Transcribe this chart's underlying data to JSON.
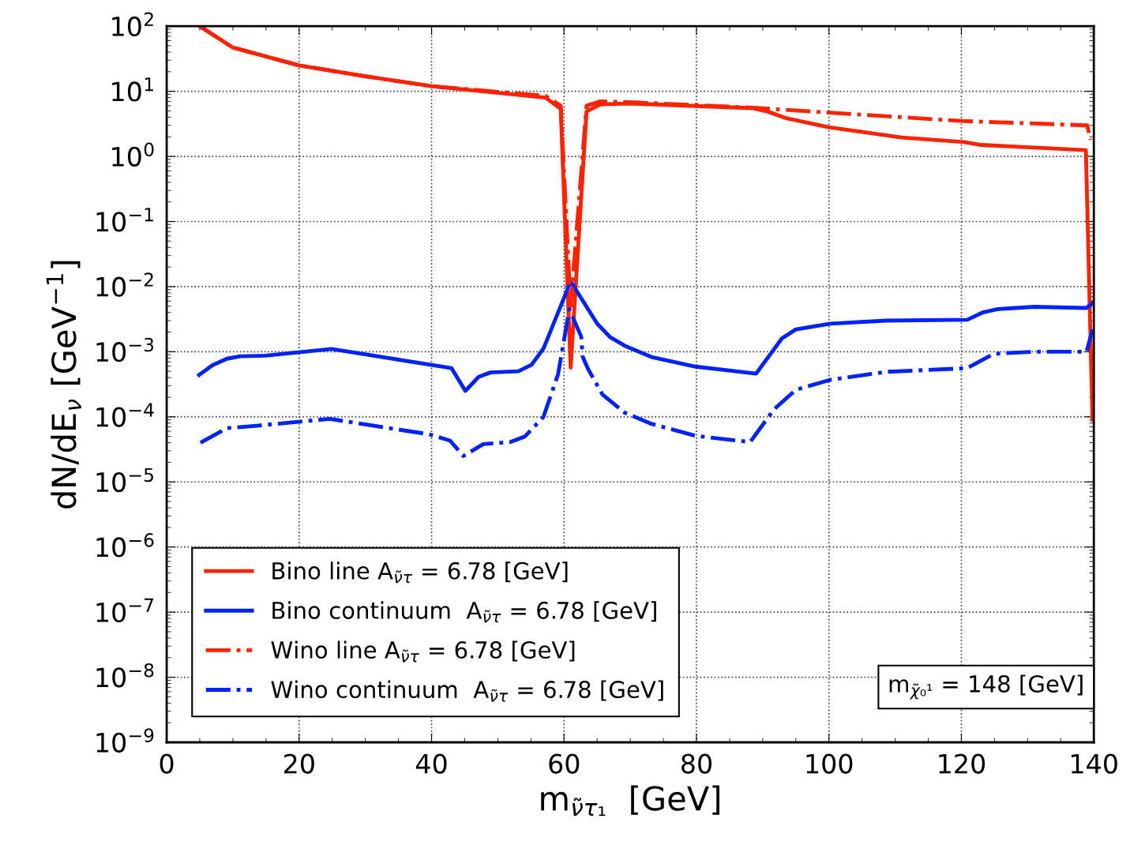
{
  "chart_data": {
    "type": "line",
    "xlabel": "m$_{ν̃τ₁}$  [GeV]",
    "ylabel": "dN/dE$_{ν}$ [GeV$^{−1}$]",
    "log": "y",
    "grid": true,
    "legend": "bottom left",
    "xlim": [
      0,
      140
    ],
    "xticks": [
      0,
      20,
      40,
      60,
      80,
      100,
      120,
      140
    ],
    "ylim": [
      1e-09,
      100
    ],
    "yticks": [
      {
        "value": 1e-09,
        "label": "10$^{−9}$"
      },
      {
        "value": 1e-08,
        "label": "10$^{−8}$"
      },
      {
        "value": 1e-07,
        "label": "10$^{−7}$"
      },
      {
        "value": 1e-06,
        "label": "10$^{−6}$"
      },
      {
        "value": 1e-05,
        "label": "10$^{−5}$"
      },
      {
        "value": 0.0001,
        "label": "10$^{−4}$"
      },
      {
        "value": 0.001,
        "label": "10$^{−3}$"
      },
      {
        "value": 0.01,
        "label": "10$^{−2}$"
      },
      {
        "value": 0.1,
        "label": "10$^{−1}$"
      },
      {
        "value": 1,
        "label": "10$^{0}$"
      },
      {
        "value": 10,
        "label": "10$^{1}$"
      },
      {
        "value": 100,
        "label": "10$^{2}$"
      }
    ],
    "annotations": [
      "m$_{χ̃₀¹}$ = 148 [GeV]"
    ],
    "series": [
      {
        "name": "Bino line A$_{ν̃τ}$ = 6.78 [GeV]",
        "color": "#ff2200",
        "line_style": "solid",
        "x": [
          5,
          10,
          20,
          30,
          40,
          57.2,
          59.5,
          61,
          63.4,
          65.5,
          70,
          88.6,
          90.7,
          93.4,
          100,
          111,
          120.4,
          123,
          138.8,
          139.8
        ],
        "values": [
          100,
          47,
          25,
          17,
          12,
          8,
          5.4,
          0.00057,
          4.9,
          6.3,
          6.5,
          5.5,
          4.9,
          3.9,
          2.8,
          1.95,
          1.66,
          1.5,
          1.25,
          9e-05
        ]
      },
      {
        "name": "Bino continuum  A$_{ν̃τ}$ = 6.78 [GeV]",
        "color": "#0022ff",
        "line_style": "solid",
        "x": [
          4.9,
          6.9,
          9.1,
          11.1,
          14.9,
          24.9,
          43,
          45.1,
          47.1,
          48.9,
          53.1,
          55.1,
          56.9,
          61,
          65,
          67,
          69.2,
          73.2,
          79.9,
          89,
          92.9,
          95,
          100.2,
          108.6,
          120.9,
          123.2,
          125.4,
          131,
          138.9,
          139.8
        ],
        "values": [
          0.00044,
          0.00062,
          0.00078,
          0.00085,
          0.00087,
          0.0011,
          0.00056,
          0.00025,
          0.00041,
          0.00048,
          0.0005,
          0.00063,
          0.00112,
          0.012,
          0.0027,
          0.00166,
          0.00123,
          0.00083,
          0.00059,
          0.00046,
          0.0016,
          0.0022,
          0.0027,
          0.003,
          0.0031,
          0.004,
          0.0045,
          0.0049,
          0.0047,
          0.0056
        ]
      },
      {
        "name": "Wino line A$_{ν̃τ}$ = 6.78 [GeV]",
        "color": "#ff2200",
        "line_style": "dashdot",
        "x": [
          5,
          10,
          20,
          30,
          40,
          57.2,
          59.5,
          61,
          63.4,
          65.5,
          70,
          88.6,
          100,
          120,
          139,
          139.5
        ],
        "values": [
          100,
          47,
          25,
          17,
          12,
          8.5,
          6,
          0.005,
          6,
          7,
          6.8,
          5.6,
          4.7,
          3.5,
          3.0,
          1.8
        ]
      },
      {
        "name": "Wino continuum  A$_{ν̃τ}$ = 6.78 [GeV]",
        "color": "#0022ff",
        "line_style": "dashdot",
        "x": [
          5.1,
          9.1,
          13.6,
          24.6,
          39.6,
          42.8,
          44.8,
          47.8,
          51.9,
          54.1,
          56.9,
          59.1,
          60.8,
          62.6,
          62.8,
          63.6,
          65.8,
          69.2,
          73.2,
          79.9,
          88.1,
          91.7,
          95,
          100.2,
          108.6,
          120.9,
          124.9,
          131,
          138.9,
          139.8
        ],
        "values": [
          4e-05,
          6.7e-05,
          7.3e-05,
          9.3e-05,
          5.4e-05,
          4.3e-05,
          2.5e-05,
          3.8e-05,
          4.1e-05,
          5e-05,
          0.0001,
          0.00045,
          0.0045,
          0.0017,
          0.00085,
          0.00055,
          0.00022,
          0.000115,
          7.8e-05,
          5.1e-05,
          4.1e-05,
          0.00013,
          0.00026,
          0.00037,
          0.00049,
          0.00056,
          0.00093,
          0.001,
          0.001,
          0.0022
        ]
      }
    ]
  }
}
